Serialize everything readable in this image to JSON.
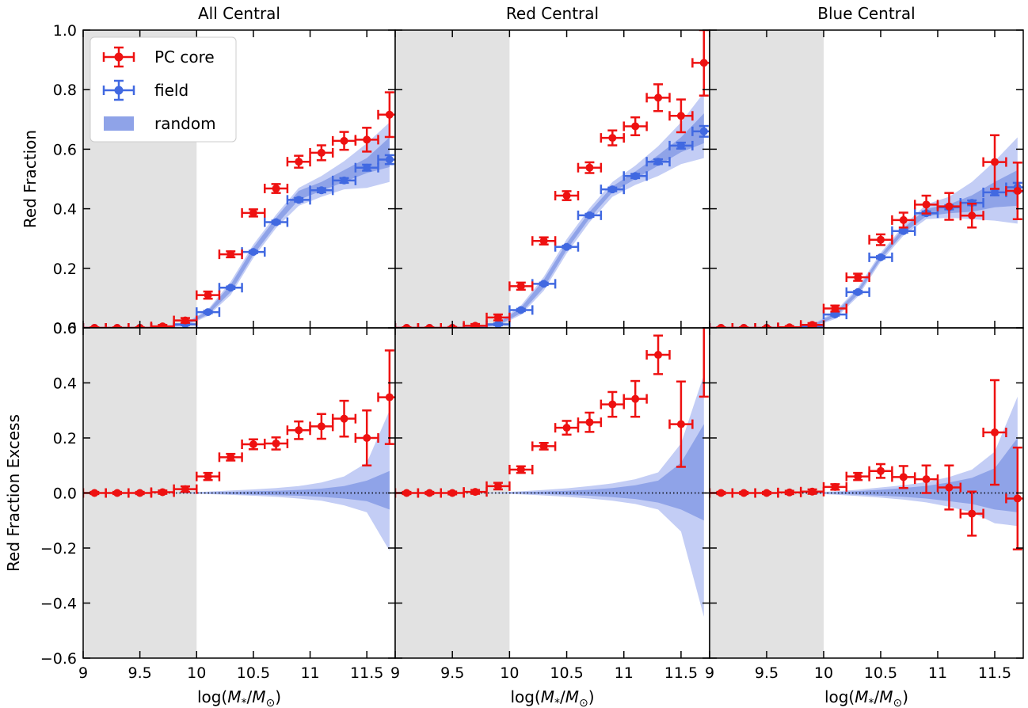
{
  "chart_data": {
    "type": "scatter",
    "column_titles": [
      "All Central",
      "Red Central",
      "Blue Central"
    ],
    "row_ylabels": [
      "Red Fraction",
      "Red Fraction Excess"
    ],
    "xlabel_parts": {
      "prefix": "log(",
      "m": "M",
      "sub_star": "*",
      "slash": "/",
      "msun": "M",
      "sub_sun": "⊙",
      "suffix": ")"
    },
    "xlim": [
      9.0,
      11.75
    ],
    "xticks": [
      9,
      9.5,
      10,
      10.5,
      11,
      11.5
    ],
    "xtick_labels": [
      "9",
      "9.5",
      "10",
      "10.5",
      "11",
      "11.5"
    ],
    "top_ylim": [
      0.0,
      1.0
    ],
    "top_yticks": [
      0.0,
      0.2,
      0.4,
      0.6,
      0.8,
      1.0
    ],
    "top_ytick_labels": [
      "0.0",
      "0.2",
      "0.4",
      "0.6",
      "0.8",
      "1.0"
    ],
    "bottom_ylim": [
      -0.6,
      0.6
    ],
    "bottom_yticks": [
      -0.6,
      -0.4,
      -0.2,
      0.0,
      0.2,
      0.4,
      0.6
    ],
    "bottom_ytick_labels": [
      "−0.6",
      "−0.4",
      "−0.2",
      "0.0",
      "0.2",
      "0.4",
      "0.6"
    ],
    "shaded_region": {
      "xmin": 9.0,
      "xmax": 10.0,
      "color": "#e2e2e2"
    },
    "legend": {
      "position": "top-left",
      "entries": [
        "PC core",
        "field",
        "random"
      ]
    },
    "colors": {
      "pc_core": "#ee1111",
      "field": "#4169e1",
      "random_inner": "#8fa3e8",
      "random_outer": "#c3cdf5"
    },
    "x": [
      9.1,
      9.3,
      9.5,
      9.7,
      9.9,
      10.1,
      10.3,
      10.5,
      10.7,
      10.9,
      11.1,
      11.3,
      11.5,
      11.7
    ],
    "x_err": 0.1,
    "panels": [
      {
        "name": "All Central",
        "top": {
          "pc_core": [
            0.0,
            0.0,
            0.0,
            0.005,
            0.025,
            0.11,
            0.247,
            0.386,
            0.468,
            0.558,
            0.588,
            0.628,
            0.632,
            0.716
          ],
          "pc_core_err": [
            0.002,
            0.002,
            0.002,
            0.005,
            0.008,
            0.012,
            0.01,
            0.012,
            0.015,
            0.02,
            0.025,
            0.03,
            0.04,
            0.075
          ],
          "field": [
            0.0,
            0.0,
            0.0,
            0.0,
            0.012,
            0.053,
            0.135,
            0.255,
            0.355,
            0.43,
            0.462,
            0.495,
            0.538,
            0.565
          ],
          "field_err": [
            0.001,
            0.001,
            0.001,
            0.002,
            0.003,
            0.004,
            0.004,
            0.004,
            0.005,
            0.006,
            0.007,
            0.008,
            0.01,
            0.015
          ],
          "random_inner_lo": [
            0.0,
            0.0,
            0.0,
            0.0,
            0.008,
            0.045,
            0.12,
            0.245,
            0.345,
            0.43,
            0.46,
            0.49,
            0.52,
            0.54
          ],
          "random_inner_hi": [
            0.0,
            0.0,
            0.0,
            0.002,
            0.015,
            0.058,
            0.145,
            0.27,
            0.37,
            0.46,
            0.49,
            0.53,
            0.57,
            0.64
          ],
          "random_outer_lo": [
            0.0,
            0.0,
            0.0,
            0.0,
            0.005,
            0.04,
            0.11,
            0.235,
            0.335,
            0.41,
            0.44,
            0.465,
            0.47,
            0.49
          ],
          "random_outer_hi": [
            0.0,
            0.0,
            0.0,
            0.004,
            0.018,
            0.062,
            0.155,
            0.28,
            0.38,
            0.47,
            0.51,
            0.56,
            0.62,
            0.69
          ]
        },
        "bottom": {
          "pc_core": [
            0.0,
            0.0,
            0.0,
            0.003,
            0.014,
            0.06,
            0.13,
            0.177,
            0.18,
            0.228,
            0.242,
            0.27,
            0.2,
            0.348
          ],
          "pc_core_err": [
            0.004,
            0.004,
            0.004,
            0.006,
            0.01,
            0.013,
            0.012,
            0.018,
            0.022,
            0.032,
            0.045,
            0.065,
            0.1,
            0.17
          ],
          "random_inner_lo": [
            0.0,
            0.0,
            0.0,
            0.0,
            -0.001,
            -0.002,
            -0.004,
            -0.006,
            -0.008,
            -0.01,
            -0.014,
            -0.02,
            -0.03,
            -0.06
          ],
          "random_inner_hi": [
            0.0,
            0.0,
            0.0,
            0.0,
            0.001,
            0.002,
            0.004,
            0.006,
            0.008,
            0.011,
            0.016,
            0.025,
            0.045,
            0.08
          ],
          "random_outer_lo": [
            0.0,
            0.0,
            0.0,
            0.0,
            -0.002,
            -0.004,
            -0.007,
            -0.01,
            -0.014,
            -0.02,
            -0.028,
            -0.045,
            -0.07,
            -0.21
          ],
          "random_outer_hi": [
            0.0,
            0.0,
            0.0,
            0.0,
            0.002,
            0.005,
            0.009,
            0.013,
            0.018,
            0.025,
            0.038,
            0.06,
            0.11,
            0.3
          ]
        }
      },
      {
        "name": "Red Central",
        "top": {
          "pc_core": [
            0.0,
            0.0,
            0.0,
            0.007,
            0.035,
            0.14,
            0.292,
            0.444,
            0.538,
            0.638,
            0.677,
            0.773,
            0.712,
            0.89
          ],
          "pc_core_err": [
            0.002,
            0.002,
            0.003,
            0.006,
            0.01,
            0.012,
            0.012,
            0.015,
            0.018,
            0.025,
            0.03,
            0.045,
            0.055,
            0.11
          ],
          "field": [
            0.0,
            0.0,
            0.0,
            0.0,
            0.012,
            0.06,
            0.148,
            0.272,
            0.378,
            0.465,
            0.51,
            0.558,
            0.612,
            0.66
          ],
          "field_err": [
            0.001,
            0.001,
            0.001,
            0.002,
            0.003,
            0.004,
            0.004,
            0.004,
            0.005,
            0.006,
            0.007,
            0.008,
            0.01,
            0.018
          ],
          "random_inner_lo": [
            0.0,
            0.0,
            0.0,
            0.0,
            0.008,
            0.05,
            0.135,
            0.262,
            0.368,
            0.455,
            0.5,
            0.545,
            0.59,
            0.62
          ],
          "random_inner_hi": [
            0.0,
            0.0,
            0.0,
            0.002,
            0.016,
            0.068,
            0.162,
            0.285,
            0.39,
            0.475,
            0.525,
            0.58,
            0.64,
            0.72
          ],
          "random_outer_lo": [
            0.0,
            0.0,
            0.0,
            0.0,
            0.005,
            0.044,
            0.125,
            0.25,
            0.355,
            0.44,
            0.48,
            0.51,
            0.55,
            0.57
          ],
          "random_outer_hi": [
            0.0,
            0.0,
            0.0,
            0.004,
            0.019,
            0.075,
            0.172,
            0.298,
            0.402,
            0.49,
            0.545,
            0.61,
            0.69,
            0.79
          ]
        },
        "bottom": {
          "pc_core": [
            0.0,
            0.0,
            0.0,
            0.004,
            0.025,
            0.085,
            0.17,
            0.237,
            0.257,
            0.322,
            0.342,
            0.502,
            0.25,
            0.68
          ],
          "pc_core_err": [
            0.004,
            0.004,
            0.005,
            0.007,
            0.012,
            0.012,
            0.012,
            0.025,
            0.035,
            0.045,
            0.065,
            0.07,
            0.155,
            0.33
          ],
          "random_inner_lo": [
            0.0,
            0.0,
            0.0,
            0.0,
            -0.001,
            -0.002,
            -0.004,
            -0.007,
            -0.01,
            -0.015,
            -0.022,
            -0.035,
            -0.06,
            -0.1
          ],
          "random_inner_hi": [
            0.0,
            0.0,
            0.0,
            0.0,
            0.001,
            0.003,
            0.005,
            0.008,
            0.012,
            0.018,
            0.028,
            0.045,
            0.11,
            0.25
          ],
          "random_outer_lo": [
            0.0,
            0.0,
            0.0,
            0.0,
            -0.002,
            -0.005,
            -0.009,
            -0.014,
            -0.02,
            -0.028,
            -0.04,
            -0.06,
            -0.14,
            -0.45
          ],
          "random_outer_hi": [
            0.0,
            0.0,
            0.0,
            0.0,
            0.002,
            0.006,
            0.011,
            0.017,
            0.025,
            0.035,
            0.05,
            0.075,
            0.18,
            0.43
          ]
        }
      },
      {
        "name": "Blue Central",
        "top": {
          "pc_core": [
            0.0,
            0.0,
            0.0,
            0.002,
            0.01,
            0.065,
            0.17,
            0.296,
            0.362,
            0.414,
            0.408,
            0.377,
            0.557,
            0.46
          ],
          "pc_core_err": [
            0.002,
            0.002,
            0.002,
            0.004,
            0.006,
            0.01,
            0.012,
            0.018,
            0.025,
            0.03,
            0.045,
            0.04,
            0.09,
            0.095
          ],
          "field": [
            0.0,
            0.0,
            0.0,
            0.0,
            0.005,
            0.045,
            0.12,
            0.237,
            0.325,
            0.385,
            0.405,
            0.42,
            0.455,
            0.472
          ],
          "field_err": [
            0.001,
            0.001,
            0.001,
            0.002,
            0.003,
            0.004,
            0.004,
            0.004,
            0.005,
            0.006,
            0.007,
            0.008,
            0.01,
            0.015
          ],
          "random_inner_lo": [
            0.0,
            0.0,
            0.0,
            0.0,
            0.003,
            0.036,
            0.112,
            0.23,
            0.318,
            0.375,
            0.385,
            0.39,
            0.405,
            0.41
          ],
          "random_inner_hi": [
            0.0,
            0.0,
            0.0,
            0.002,
            0.009,
            0.05,
            0.128,
            0.245,
            0.335,
            0.4,
            0.415,
            0.445,
            0.49,
            0.53
          ],
          "random_outer_lo": [
            0.0,
            0.0,
            0.0,
            0.0,
            0.002,
            0.03,
            0.105,
            0.222,
            0.31,
            0.365,
            0.37,
            0.365,
            0.36,
            0.35
          ],
          "random_outer_hi": [
            0.0,
            0.0,
            0.0,
            0.004,
            0.012,
            0.055,
            0.135,
            0.252,
            0.343,
            0.415,
            0.44,
            0.49,
            0.56,
            0.64
          ]
        },
        "bottom": {
          "pc_core": [
            0.0,
            0.0,
            0.0,
            0.002,
            0.005,
            0.022,
            0.06,
            0.08,
            0.058,
            0.05,
            0.02,
            -0.075,
            0.22,
            -0.02
          ],
          "pc_core_err": [
            0.004,
            0.004,
            0.004,
            0.006,
            0.008,
            0.01,
            0.013,
            0.025,
            0.04,
            0.05,
            0.08,
            0.08,
            0.19,
            0.185
          ],
          "random_inner_lo": [
            0.0,
            0.0,
            0.0,
            0.0,
            -0.001,
            -0.003,
            -0.006,
            -0.01,
            -0.014,
            -0.02,
            -0.03,
            -0.04,
            -0.06,
            -0.07
          ],
          "random_inner_hi": [
            0.0,
            0.0,
            0.0,
            0.0,
            0.001,
            0.003,
            0.007,
            0.012,
            0.018,
            0.026,
            0.038,
            0.055,
            0.09,
            0.2
          ],
          "random_outer_lo": [
            0.0,
            0.0,
            0.0,
            0.0,
            -0.002,
            -0.006,
            -0.011,
            -0.017,
            -0.024,
            -0.034,
            -0.05,
            -0.07,
            -0.11,
            -0.12
          ],
          "random_outer_hi": [
            0.0,
            0.0,
            0.0,
            0.0,
            0.002,
            0.006,
            0.012,
            0.02,
            0.028,
            0.04,
            0.058,
            0.085,
            0.15,
            0.35
          ]
        }
      }
    ]
  }
}
